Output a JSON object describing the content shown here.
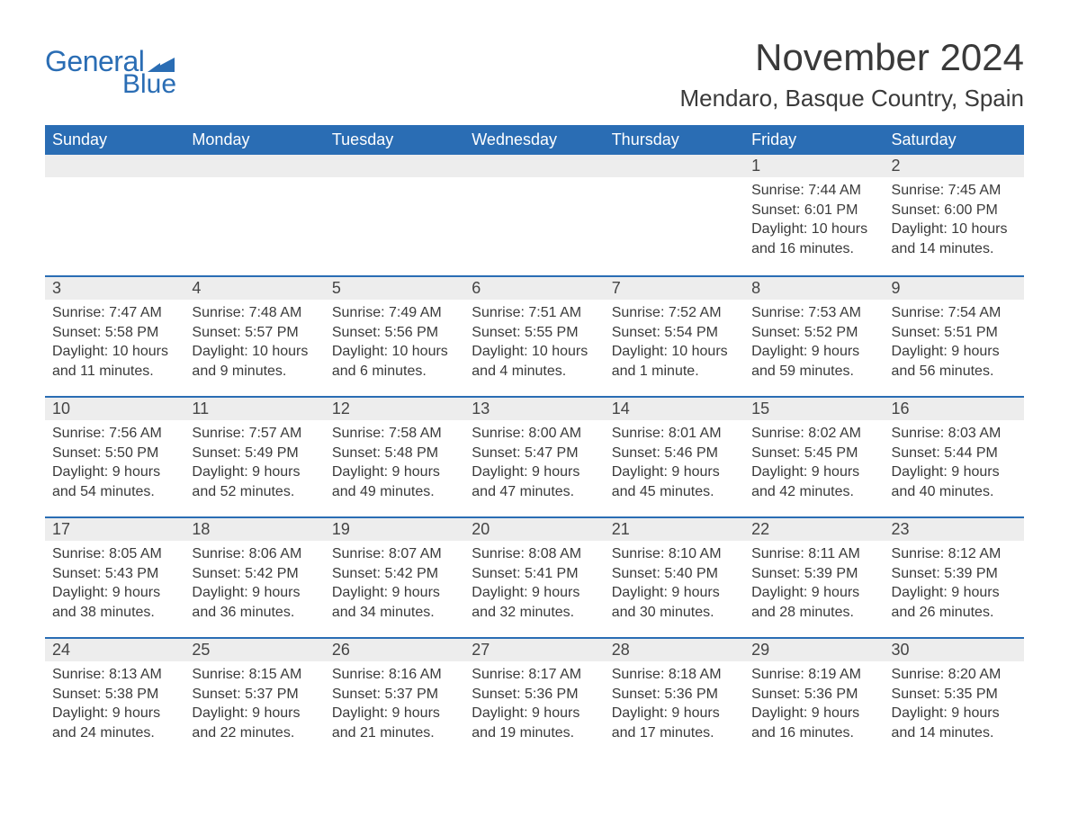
{
  "logo": {
    "general": "General",
    "blue": "Blue",
    "flag_color": "#2a6db4"
  },
  "title": "November 2024",
  "location": "Mendaro, Basque Country, Spain",
  "colors": {
    "brand": "#2a6db4",
    "header_bg": "#2a6db4",
    "header_text": "#ffffff",
    "daynum_bg": "#ededed",
    "text": "#3a3a3a",
    "page_bg": "#ffffff"
  },
  "fonts": {
    "title_size_pt": 32,
    "location_size_pt": 20,
    "day_header_size_pt": 14,
    "body_size_pt": 12
  },
  "weekdays": [
    "Sunday",
    "Monday",
    "Tuesday",
    "Wednesday",
    "Thursday",
    "Friday",
    "Saturday"
  ],
  "weeks": [
    [
      null,
      null,
      null,
      null,
      null,
      {
        "day": "1",
        "sunrise": "Sunrise: 7:44 AM",
        "sunset": "Sunset: 6:01 PM",
        "daylight": "Daylight: 10 hours and 16 minutes."
      },
      {
        "day": "2",
        "sunrise": "Sunrise: 7:45 AM",
        "sunset": "Sunset: 6:00 PM",
        "daylight": "Daylight: 10 hours and 14 minutes."
      }
    ],
    [
      {
        "day": "3",
        "sunrise": "Sunrise: 7:47 AM",
        "sunset": "Sunset: 5:58 PM",
        "daylight": "Daylight: 10 hours and 11 minutes."
      },
      {
        "day": "4",
        "sunrise": "Sunrise: 7:48 AM",
        "sunset": "Sunset: 5:57 PM",
        "daylight": "Daylight: 10 hours and 9 minutes."
      },
      {
        "day": "5",
        "sunrise": "Sunrise: 7:49 AM",
        "sunset": "Sunset: 5:56 PM",
        "daylight": "Daylight: 10 hours and 6 minutes."
      },
      {
        "day": "6",
        "sunrise": "Sunrise: 7:51 AM",
        "sunset": "Sunset: 5:55 PM",
        "daylight": "Daylight: 10 hours and 4 minutes."
      },
      {
        "day": "7",
        "sunrise": "Sunrise: 7:52 AM",
        "sunset": "Sunset: 5:54 PM",
        "daylight": "Daylight: 10 hours and 1 minute."
      },
      {
        "day": "8",
        "sunrise": "Sunrise: 7:53 AM",
        "sunset": "Sunset: 5:52 PM",
        "daylight": "Daylight: 9 hours and 59 minutes."
      },
      {
        "day": "9",
        "sunrise": "Sunrise: 7:54 AM",
        "sunset": "Sunset: 5:51 PM",
        "daylight": "Daylight: 9 hours and 56 minutes."
      }
    ],
    [
      {
        "day": "10",
        "sunrise": "Sunrise: 7:56 AM",
        "sunset": "Sunset: 5:50 PM",
        "daylight": "Daylight: 9 hours and 54 minutes."
      },
      {
        "day": "11",
        "sunrise": "Sunrise: 7:57 AM",
        "sunset": "Sunset: 5:49 PM",
        "daylight": "Daylight: 9 hours and 52 minutes."
      },
      {
        "day": "12",
        "sunrise": "Sunrise: 7:58 AM",
        "sunset": "Sunset: 5:48 PM",
        "daylight": "Daylight: 9 hours and 49 minutes."
      },
      {
        "day": "13",
        "sunrise": "Sunrise: 8:00 AM",
        "sunset": "Sunset: 5:47 PM",
        "daylight": "Daylight: 9 hours and 47 minutes."
      },
      {
        "day": "14",
        "sunrise": "Sunrise: 8:01 AM",
        "sunset": "Sunset: 5:46 PM",
        "daylight": "Daylight: 9 hours and 45 minutes."
      },
      {
        "day": "15",
        "sunrise": "Sunrise: 8:02 AM",
        "sunset": "Sunset: 5:45 PM",
        "daylight": "Daylight: 9 hours and 42 minutes."
      },
      {
        "day": "16",
        "sunrise": "Sunrise: 8:03 AM",
        "sunset": "Sunset: 5:44 PM",
        "daylight": "Daylight: 9 hours and 40 minutes."
      }
    ],
    [
      {
        "day": "17",
        "sunrise": "Sunrise: 8:05 AM",
        "sunset": "Sunset: 5:43 PM",
        "daylight": "Daylight: 9 hours and 38 minutes."
      },
      {
        "day": "18",
        "sunrise": "Sunrise: 8:06 AM",
        "sunset": "Sunset: 5:42 PM",
        "daylight": "Daylight: 9 hours and 36 minutes."
      },
      {
        "day": "19",
        "sunrise": "Sunrise: 8:07 AM",
        "sunset": "Sunset: 5:42 PM",
        "daylight": "Daylight: 9 hours and 34 minutes."
      },
      {
        "day": "20",
        "sunrise": "Sunrise: 8:08 AM",
        "sunset": "Sunset: 5:41 PM",
        "daylight": "Daylight: 9 hours and 32 minutes."
      },
      {
        "day": "21",
        "sunrise": "Sunrise: 8:10 AM",
        "sunset": "Sunset: 5:40 PM",
        "daylight": "Daylight: 9 hours and 30 minutes."
      },
      {
        "day": "22",
        "sunrise": "Sunrise: 8:11 AM",
        "sunset": "Sunset: 5:39 PM",
        "daylight": "Daylight: 9 hours and 28 minutes."
      },
      {
        "day": "23",
        "sunrise": "Sunrise: 8:12 AM",
        "sunset": "Sunset: 5:39 PM",
        "daylight": "Daylight: 9 hours and 26 minutes."
      }
    ],
    [
      {
        "day": "24",
        "sunrise": "Sunrise: 8:13 AM",
        "sunset": "Sunset: 5:38 PM",
        "daylight": "Daylight: 9 hours and 24 minutes."
      },
      {
        "day": "25",
        "sunrise": "Sunrise: 8:15 AM",
        "sunset": "Sunset: 5:37 PM",
        "daylight": "Daylight: 9 hours and 22 minutes."
      },
      {
        "day": "26",
        "sunrise": "Sunrise: 8:16 AM",
        "sunset": "Sunset: 5:37 PM",
        "daylight": "Daylight: 9 hours and 21 minutes."
      },
      {
        "day": "27",
        "sunrise": "Sunrise: 8:17 AM",
        "sunset": "Sunset: 5:36 PM",
        "daylight": "Daylight: 9 hours and 19 minutes."
      },
      {
        "day": "28",
        "sunrise": "Sunrise: 8:18 AM",
        "sunset": "Sunset: 5:36 PM",
        "daylight": "Daylight: 9 hours and 17 minutes."
      },
      {
        "day": "29",
        "sunrise": "Sunrise: 8:19 AM",
        "sunset": "Sunset: 5:36 PM",
        "daylight": "Daylight: 9 hours and 16 minutes."
      },
      {
        "day": "30",
        "sunrise": "Sunrise: 8:20 AM",
        "sunset": "Sunset: 5:35 PM",
        "daylight": "Daylight: 9 hours and 14 minutes."
      }
    ]
  ]
}
